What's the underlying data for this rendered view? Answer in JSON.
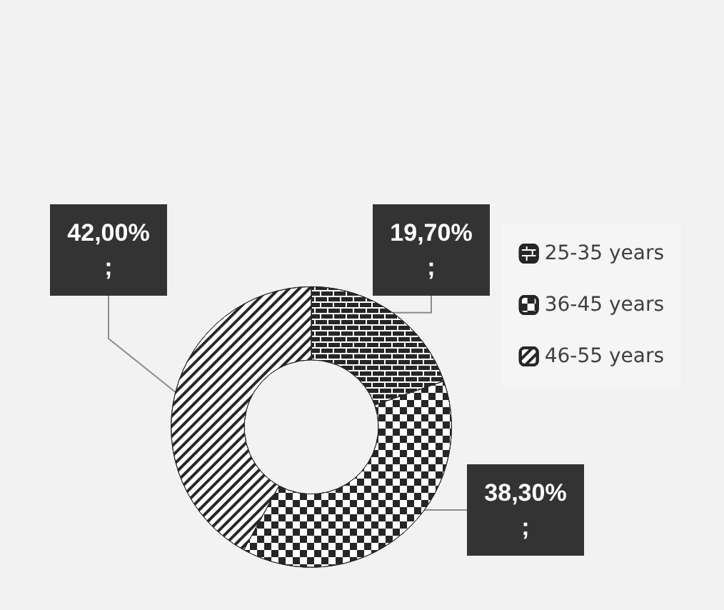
{
  "chart_data": {
    "type": "donut",
    "categories": [
      "25-35 years",
      "36-45 years",
      "46-55 years"
    ],
    "values": [
      19.7,
      38.3,
      42.0
    ],
    "colors": [
      "#262626",
      "#262626",
      "#262626"
    ],
    "value_labels": [
      "19,70%\n;",
      "38,30%\n;",
      "42,00%\n;"
    ],
    "legend": "right"
  }
}
